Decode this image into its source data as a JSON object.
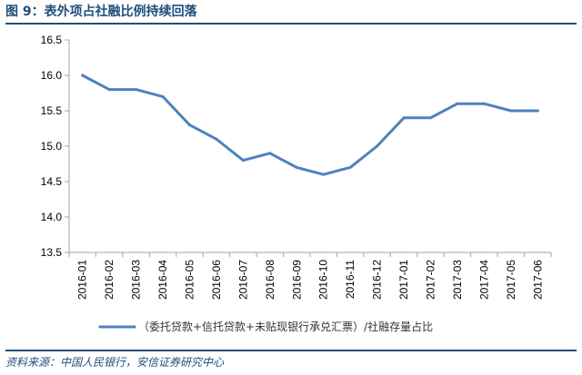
{
  "header": {
    "title": "图 9：表外项占社融比例持续回落"
  },
  "footer": {
    "source": "资料来源：中国人民银行，安信证券研究中心"
  },
  "colors": {
    "accent": "#1f4e79",
    "series": "#4f81bd",
    "axis": "#a6a6a6"
  },
  "chart_data": {
    "type": "line",
    "title": "图 9：表外项占社融比例持续回落",
    "xlabel": "",
    "ylabel": "",
    "ylim": [
      13.5,
      16.5
    ],
    "yticks": [
      13.5,
      14.0,
      14.5,
      15.0,
      15.5,
      16.0,
      16.5
    ],
    "grid": false,
    "legend_position": "bottom",
    "categories": [
      "2016-01",
      "2016-02",
      "2016-03",
      "2016-04",
      "2016-05",
      "2016-06",
      "2016-07",
      "2016-08",
      "2016-09",
      "2016-10",
      "2016-11",
      "2016-12",
      "2017-01",
      "2017-02",
      "2017-03",
      "2017-04",
      "2017-05",
      "2017-06"
    ],
    "series": [
      {
        "name": "（委托贷款+信托贷款+未贴现银行承兑汇票）/社融存量占比",
        "values": [
          16.0,
          15.8,
          15.8,
          15.7,
          15.3,
          15.1,
          14.8,
          14.9,
          14.7,
          14.6,
          14.7,
          15.0,
          15.4,
          15.4,
          15.6,
          15.6,
          15.5,
          15.5
        ]
      }
    ]
  }
}
